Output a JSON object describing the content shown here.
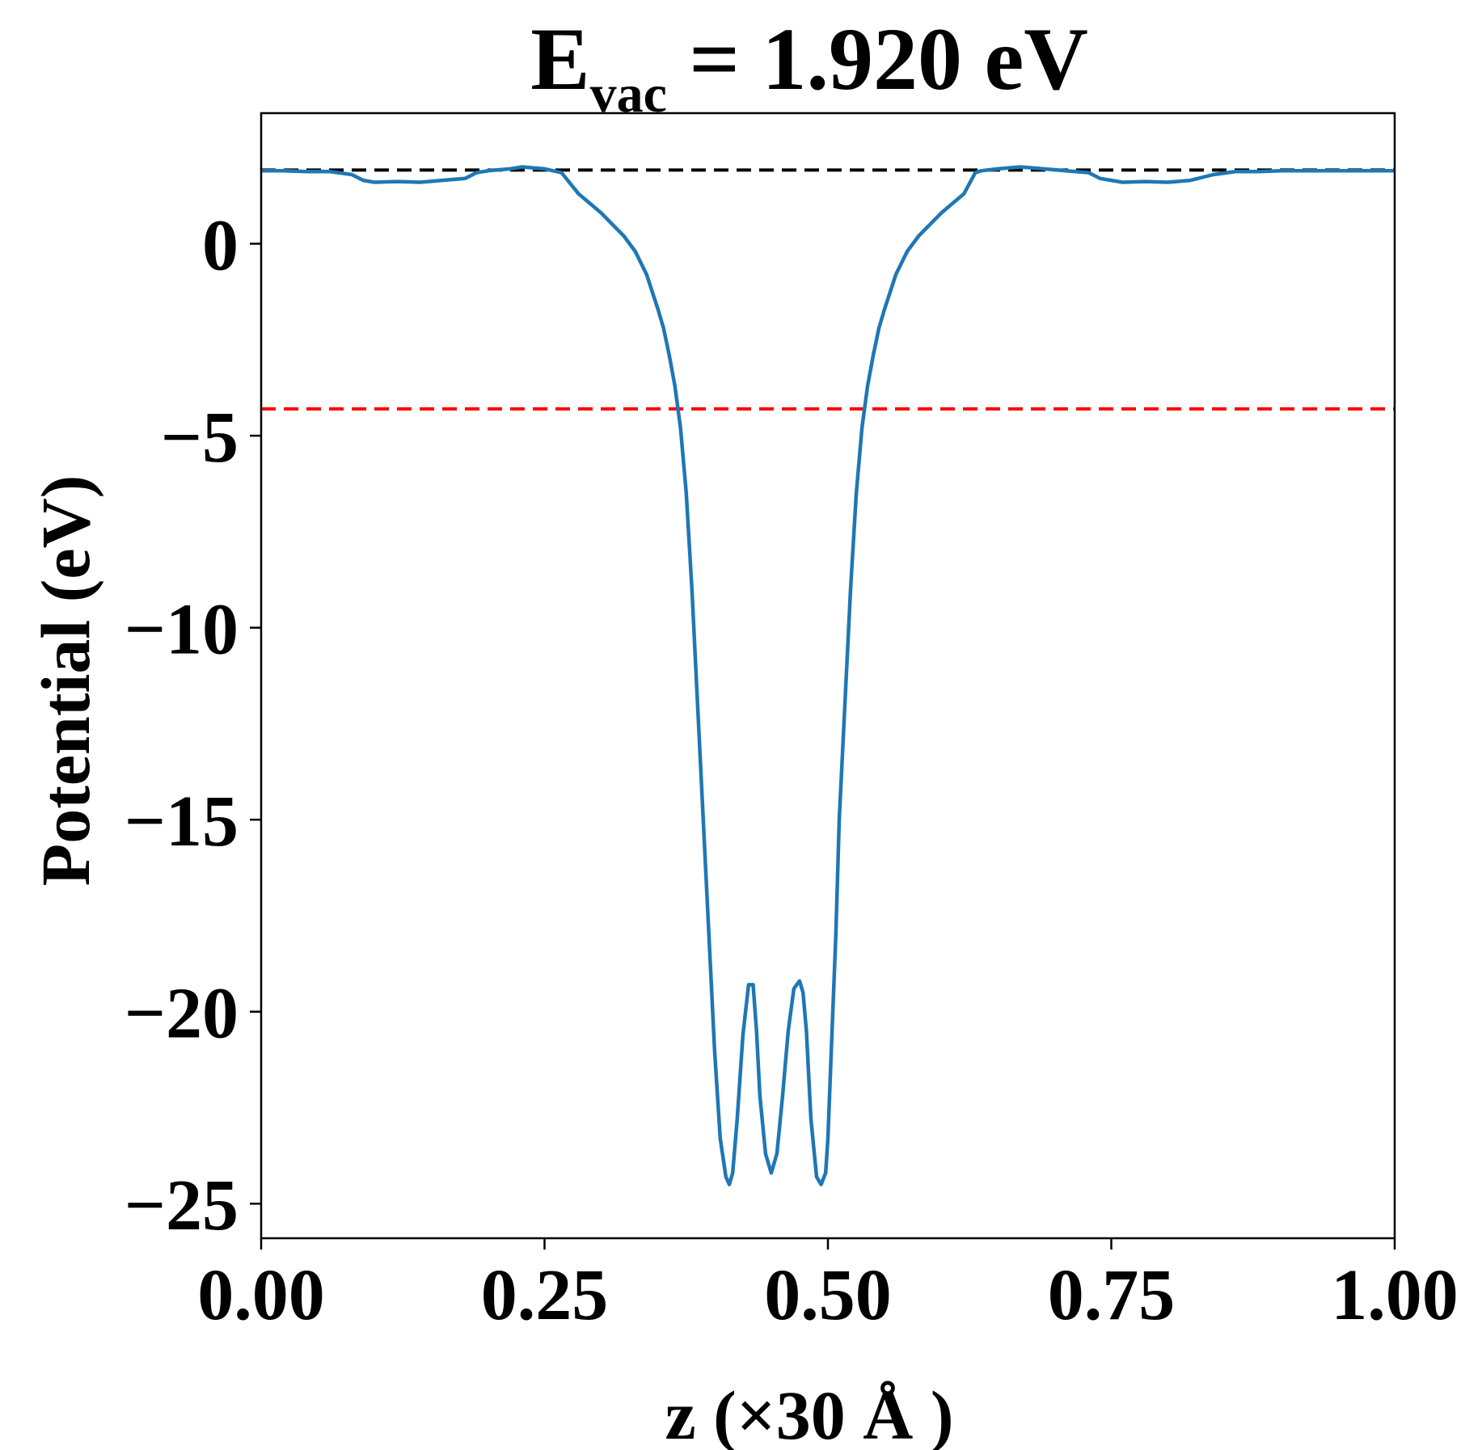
{
  "chart_data": {
    "type": "line",
    "title": {
      "main": "E",
      "subscript": "vac",
      "rest": " = 1.920 eV"
    },
    "xlabel": "z (×30 Å )",
    "ylabel": "Potential (eV)",
    "xlim": [
      0.0,
      1.0
    ],
    "ylim": [
      -25.9,
      3.4
    ],
    "x_ticks": [
      0.0,
      0.25,
      0.5,
      0.75,
      1.0
    ],
    "x_tick_labels": [
      "0.00",
      "0.25",
      "0.50",
      "0.75",
      "1.00"
    ],
    "y_ticks": [
      0,
      -5,
      -10,
      -15,
      -20,
      -25
    ],
    "y_tick_labels": [
      "0",
      "−5",
      "−10",
      "−15",
      "−20",
      "−25"
    ],
    "grid": false,
    "reference_lines": [
      {
        "y": 1.92,
        "color": "#000000",
        "style": "dashed"
      },
      {
        "y": -4.3,
        "color": "#ff0000",
        "style": "dashed"
      }
    ],
    "series": [
      {
        "color": "#1f77b4",
        "x": [
          0.0,
          0.02,
          0.04,
          0.06,
          0.08,
          0.09,
          0.1,
          0.12,
          0.14,
          0.16,
          0.18,
          0.19,
          0.2,
          0.22,
          0.23,
          0.25,
          0.265,
          0.28,
          0.29,
          0.3,
          0.31,
          0.32,
          0.33,
          0.34,
          0.35,
          0.355,
          0.36,
          0.365,
          0.37,
          0.375,
          0.38,
          0.385,
          0.39,
          0.395,
          0.4,
          0.405,
          0.41,
          0.413,
          0.416,
          0.42,
          0.425,
          0.43,
          0.434,
          0.437,
          0.44,
          0.445,
          0.45,
          0.455,
          0.46,
          0.465,
          0.47,
          0.475,
          0.478,
          0.481,
          0.485,
          0.49,
          0.494,
          0.498,
          0.5,
          0.503,
          0.507,
          0.51,
          0.515,
          0.52,
          0.525,
          0.53,
          0.535,
          0.54,
          0.545,
          0.55,
          0.56,
          0.57,
          0.58,
          0.59,
          0.6,
          0.61,
          0.62,
          0.63,
          0.635,
          0.65,
          0.67,
          0.69,
          0.71,
          0.73,
          0.74,
          0.75,
          0.76,
          0.78,
          0.8,
          0.82,
          0.84,
          0.86,
          0.88,
          0.9,
          0.92,
          0.94,
          0.96,
          0.98,
          1.0
        ],
        "y": [
          1.9,
          1.9,
          1.88,
          1.88,
          1.8,
          1.65,
          1.6,
          1.62,
          1.6,
          1.65,
          1.7,
          1.85,
          1.9,
          1.95,
          2.0,
          1.95,
          1.85,
          1.3,
          1.05,
          0.8,
          0.5,
          0.2,
          -0.2,
          -0.8,
          -1.7,
          -2.2,
          -2.9,
          -3.7,
          -4.8,
          -6.5,
          -9.0,
          -12.0,
          -15.0,
          -18.0,
          -21.0,
          -23.3,
          -24.3,
          -24.5,
          -24.2,
          -22.8,
          -20.6,
          -19.3,
          -19.3,
          -20.5,
          -22.2,
          -23.7,
          -24.2,
          -23.7,
          -22.2,
          -20.5,
          -19.4,
          -19.2,
          -19.5,
          -20.5,
          -22.8,
          -24.3,
          -24.5,
          -24.2,
          -23.3,
          -21.0,
          -18.0,
          -15.0,
          -12.0,
          -9.0,
          -6.5,
          -4.8,
          -3.7,
          -2.9,
          -2.2,
          -1.7,
          -0.8,
          -0.2,
          0.2,
          0.5,
          0.8,
          1.05,
          1.3,
          1.85,
          1.9,
          1.95,
          2.0,
          1.95,
          1.9,
          1.85,
          1.7,
          1.65,
          1.6,
          1.62,
          1.6,
          1.65,
          1.8,
          1.88,
          1.88,
          1.9,
          1.9,
          1.9,
          1.9,
          1.9,
          1.9
        ]
      }
    ]
  }
}
